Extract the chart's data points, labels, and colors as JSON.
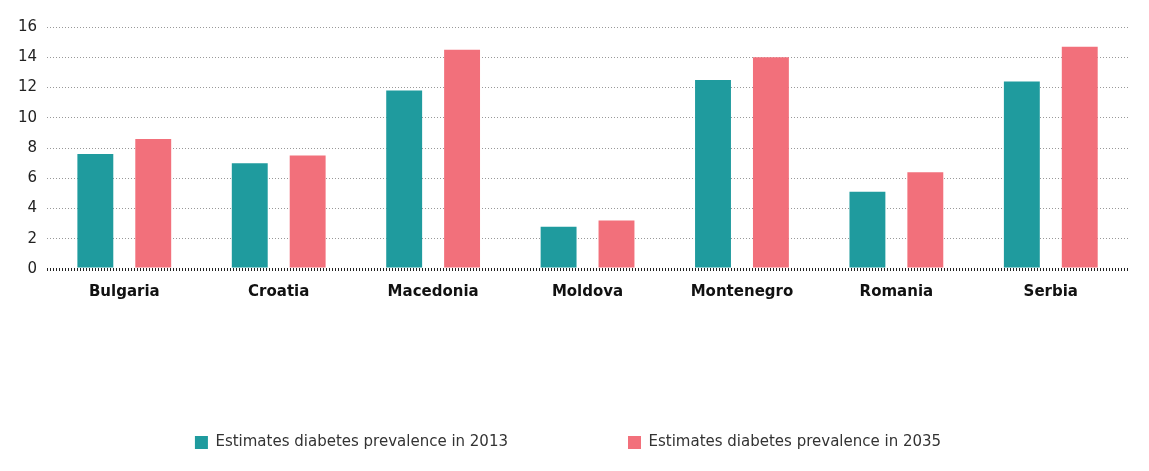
{
  "chart_data": {
    "type": "bar",
    "categories": [
      "Bulgaria",
      "Croatia",
      "Macedonia",
      "Moldova",
      "Montenegro",
      "Romania",
      "Serbia"
    ],
    "series": [
      {
        "name": "Estimates diabetes prevalence in 2013",
        "color": "#1f9b9e",
        "values": [
          7.6,
          7.0,
          11.8,
          2.8,
          12.5,
          5.1,
          12.4
        ]
      },
      {
        "name": "Estimates diabetes prevalence in 2035",
        "color": "#f2707b",
        "values": [
          8.6,
          7.5,
          14.5,
          3.2,
          14.0,
          6.4,
          14.7
        ]
      }
    ],
    "ylim": [
      0,
      16
    ],
    "yticks": [
      0,
      2,
      4,
      6,
      8,
      10,
      12,
      14,
      16
    ],
    "grid": "y",
    "legend": "bottom"
  }
}
